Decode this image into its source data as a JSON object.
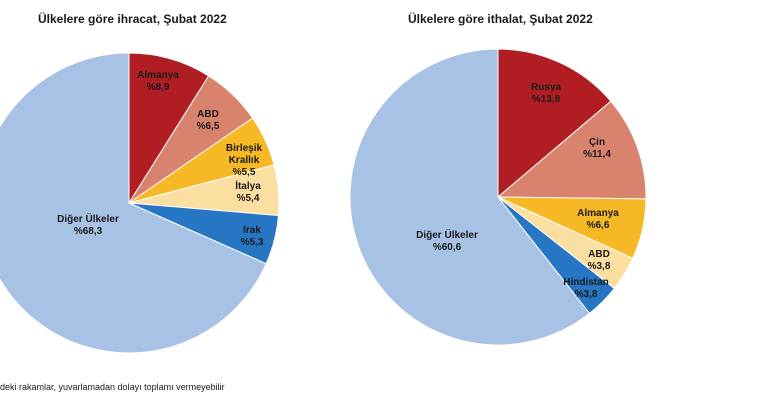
{
  "chart_data": [
    {
      "type": "pie",
      "title": "Ülkelere göre ihracat, Şubat 2022",
      "slices": [
        {
          "name": "Almanya",
          "value_label": "%8,9",
          "value": 8.9,
          "color": "#b01e23"
        },
        {
          "name": "ABD",
          "value_label": "%6,5",
          "value": 6.5,
          "color": "#d9826d"
        },
        {
          "name": "Birleşik Krallık",
          "value_label": "%5,5",
          "value": 5.5,
          "color": "#f6b824"
        },
        {
          "name": "İtalya",
          "value_label": "%5,4",
          "value": 5.4,
          "color": "#fbdfa1"
        },
        {
          "name": "Irak",
          "value_label": "%5,3",
          "value": 5.3,
          "color": "#2676c4"
        },
        {
          "name": "Diğer Ülkeler",
          "value_label": "%68,3",
          "value": 68.3,
          "color": "#a8c2e5"
        }
      ]
    },
    {
      "type": "pie",
      "title": "Ülkelere göre ithalat, Şubat 2022",
      "slices": [
        {
          "name": "Rusya",
          "value_label": "%13,8",
          "value": 13.8,
          "color": "#b01e23"
        },
        {
          "name": "Çin",
          "value_label": "%11,4",
          "value": 11.4,
          "color": "#d9826d"
        },
        {
          "name": "Almanya",
          "value_label": "%6,6",
          "value": 6.6,
          "color": "#f6b824"
        },
        {
          "name": "ABD",
          "value_label": "%3,8",
          "value": 3.8,
          "color": "#fbdfa1"
        },
        {
          "name": "Hindistan",
          "value_label": "%3,8",
          "value": 3.8,
          "color": "#2676c4"
        },
        {
          "name": "Diğer Ülkeler",
          "value_label": "%60,6",
          "value": 60.6,
          "color": "#a8c2e5"
        }
      ]
    }
  ],
  "footnote": "deki rakamlar, yuvarlamadan dolayı toplamı vermeyebilir"
}
